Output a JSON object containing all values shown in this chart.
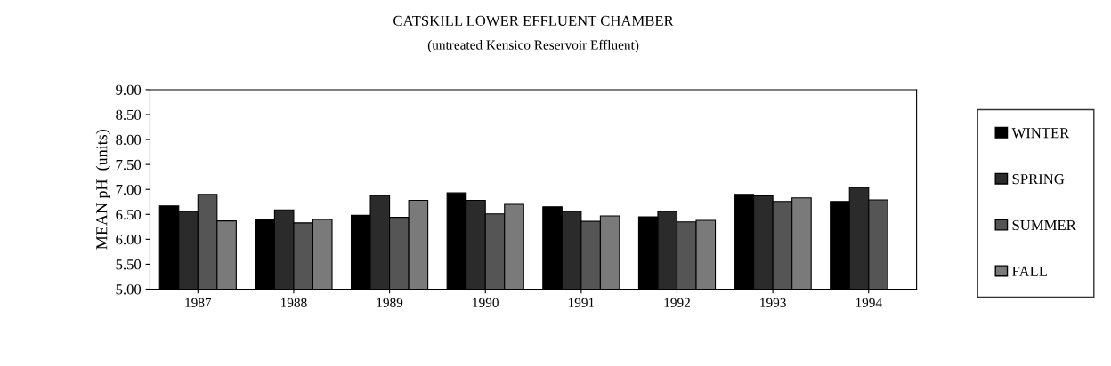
{
  "chart_data": {
    "type": "bar",
    "title": "CATSKILL LOWER EFFLUENT CHAMBER",
    "subtitle": "(untreated Kensico Reservoir Effluent)",
    "ylabel": "MEAN pH  (units)",
    "categories": [
      "1987",
      "1988",
      "1989",
      "1990",
      "1991",
      "1992",
      "1993",
      "1994"
    ],
    "series": [
      {
        "name": "WINTER",
        "color": "#000000",
        "values": [
          6.67,
          6.4,
          6.48,
          6.93,
          6.65,
          6.45,
          6.9,
          6.76
        ]
      },
      {
        "name": "SPRING",
        "color": "#2b2b2b",
        "values": [
          6.56,
          6.59,
          6.88,
          6.78,
          6.56,
          6.56,
          6.87,
          7.04
        ]
      },
      {
        "name": "SUMMER",
        "color": "#555555",
        "values": [
          6.9,
          6.33,
          6.44,
          6.51,
          6.36,
          6.35,
          6.76,
          6.79
        ]
      },
      {
        "name": "FALL",
        "color": "#7a7a7a",
        "values": [
          6.37,
          6.4,
          6.78,
          6.7,
          6.47,
          6.38,
          6.83,
          null
        ]
      }
    ],
    "ylim": [
      5.0,
      9.0
    ],
    "yticks": [
      {
        "value": 5.0,
        "label": "5.00"
      },
      {
        "value": 5.5,
        "label": "5.50"
      },
      {
        "value": 6.0,
        "label": "6.00"
      },
      {
        "value": 6.5,
        "label": "6.50"
      },
      {
        "value": 7.0,
        "label": "7.00"
      },
      {
        "value": 7.5,
        "label": "7.50"
      },
      {
        "value": 8.0,
        "label": "8.00"
      },
      {
        "value": 8.5,
        "label": "8.50"
      },
      {
        "value": 9.0,
        "label": "9.00"
      }
    ],
    "grid": false,
    "legend": "right"
  }
}
